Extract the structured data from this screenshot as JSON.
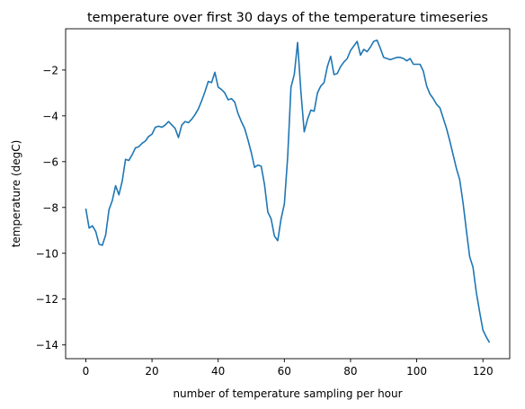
{
  "chart_data": {
    "type": "line",
    "title": "temperature over  first 30 days of the temperature timeseries",
    "xlabel": "number of temperature sampling per hour",
    "ylabel": "temperature (degC)",
    "xlim": [
      -6.1,
      128.1
    ],
    "ylim": [
      -14.6,
      -0.2
    ],
    "xticks": [
      0,
      20,
      40,
      60,
      80,
      100,
      120
    ],
    "yticks": [
      -14,
      -12,
      -10,
      -8,
      -6,
      -4,
      -2
    ],
    "grid": false,
    "legend": "none",
    "line_color": "#1f77b4",
    "series": [
      {
        "x": [
          0,
          1,
          2,
          3,
          4,
          5,
          6,
          7,
          8,
          9,
          10,
          11,
          12,
          13,
          14,
          15,
          16,
          17,
          18,
          19,
          20,
          21,
          22,
          23,
          24,
          25,
          26,
          27,
          28,
          29,
          30,
          31,
          32,
          33,
          34,
          35,
          36,
          37,
          38,
          39,
          40,
          41,
          42,
          43,
          44,
          45,
          46,
          47,
          48,
          49,
          50,
          51,
          52,
          53,
          54,
          55,
          56,
          57,
          58,
          59,
          60,
          61,
          62,
          63,
          64,
          65,
          66,
          67,
          68,
          69,
          70,
          71,
          72,
          73,
          74,
          75,
          76,
          77,
          78,
          79,
          80,
          81,
          82,
          83,
          84,
          85,
          86,
          87,
          88,
          89,
          90,
          91,
          92,
          93,
          94,
          95,
          96,
          97,
          98,
          99,
          100,
          101,
          102,
          103,
          104,
          105,
          106,
          107,
          108,
          109,
          110,
          111,
          112,
          113,
          114,
          115,
          116,
          117,
          118,
          119,
          120,
          121,
          122
        ],
        "y": [
          -8.05,
          -8.9,
          -8.8,
          -9.05,
          -9.6,
          -9.65,
          -9.2,
          -8.1,
          -7.7,
          -7.05,
          -7.45,
          -6.85,
          -5.9,
          -5.95,
          -5.7,
          -5.4,
          -5.35,
          -5.2,
          -5.1,
          -4.9,
          -4.8,
          -4.5,
          -4.45,
          -4.5,
          -4.4,
          -4.25,
          -4.4,
          -4.55,
          -4.95,
          -4.4,
          -4.25,
          -4.3,
          -4.15,
          -3.95,
          -3.7,
          -3.35,
          -2.95,
          -2.5,
          -2.55,
          -2.1,
          -2.75,
          -2.85,
          -3.0,
          -3.3,
          -3.25,
          -3.4,
          -3.9,
          -4.25,
          -4.55,
          -5.05,
          -5.6,
          -6.25,
          -6.15,
          -6.2,
          -7.0,
          -8.2,
          -8.5,
          -9.25,
          -9.45,
          -8.5,
          -7.85,
          -5.8,
          -2.75,
          -2.2,
          -0.8,
          -2.95,
          -4.7,
          -4.15,
          -3.75,
          -3.8,
          -3.0,
          -2.7,
          -2.55,
          -1.85,
          -1.4,
          -2.2,
          -2.15,
          -1.85,
          -1.65,
          -1.5,
          -1.15,
          -0.95,
          -0.75,
          -1.35,
          -1.1,
          -1.2,
          -1.0,
          -0.75,
          -0.7,
          -1.05,
          -1.45,
          -1.5,
          -1.55,
          -1.5,
          -1.45,
          -1.45,
          -1.5,
          -1.6,
          -1.5,
          -1.75,
          -1.75,
          -1.75,
          -2.05,
          -2.7,
          -3.05,
          -3.25,
          -3.5,
          -3.65,
          -4.1,
          -4.55,
          -5.1,
          -5.7,
          -6.3,
          -6.8,
          -7.8,
          -9.0,
          -10.15,
          -10.6,
          -11.7,
          -12.55,
          -13.35,
          -13.65,
          -13.9
        ]
      }
    ]
  }
}
